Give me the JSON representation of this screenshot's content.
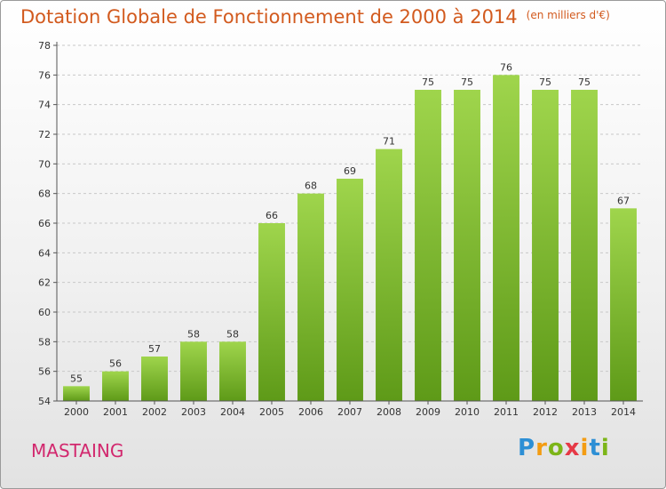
{
  "chart_data": {
    "type": "bar",
    "title": "Dotation Globale de Fonctionnement de 2000 à 2014",
    "subtitle": "(en milliers d'€)",
    "categories": [
      "2000",
      "2001",
      "2002",
      "2003",
      "2004",
      "2005",
      "2006",
      "2007",
      "2008",
      "2009",
      "2010",
      "2011",
      "2012",
      "2013",
      "2014"
    ],
    "values": [
      55,
      56,
      57,
      58,
      58,
      66,
      68,
      69,
      71,
      75,
      75,
      76,
      75,
      75,
      67
    ],
    "ylim": [
      54,
      78
    ],
    "yticks": [
      54,
      56,
      58,
      60,
      62,
      64,
      66,
      68,
      70,
      72,
      74,
      76,
      78
    ],
    "grid": "horizontal dashed",
    "bar_color": "#8cc63f",
    "bar_color_dark": "#5e9a18"
  },
  "labels": {
    "commune": "MASTAING"
  },
  "logo": {
    "letters": [
      "P",
      "r",
      "o",
      "x",
      "i",
      "t",
      "i"
    ],
    "colors": [
      "#2d8fd5",
      "#f39c12",
      "#7cb518",
      "#e63946",
      "#f39c12",
      "#2d8fd5",
      "#7cb518"
    ]
  }
}
